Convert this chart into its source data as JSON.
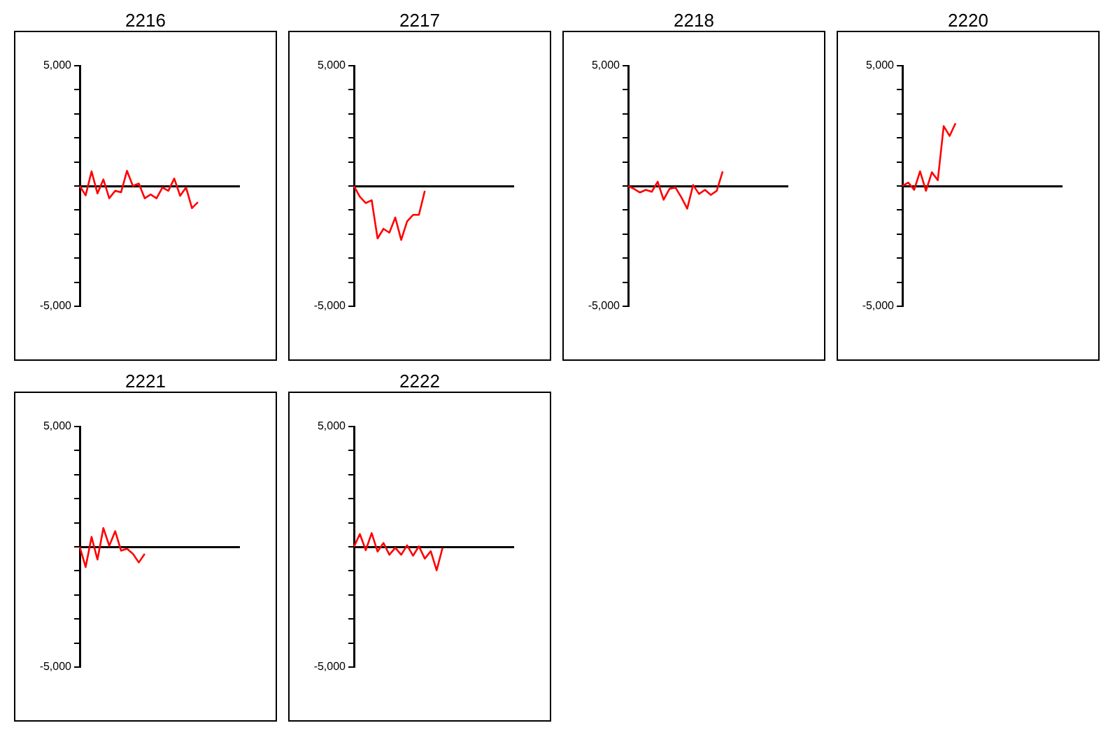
{
  "chart_data": [
    {
      "type": "line",
      "title": "2216",
      "tick_labels": "y",
      "ylim": [
        -5000,
        5000
      ],
      "yticks": [
        {
          "value": -5000,
          "label": "-5,000"
        },
        {
          "value": -4000,
          "label": null
        },
        {
          "value": -3000,
          "label": null
        },
        {
          "value": -2000,
          "label": null
        },
        {
          "value": -1000,
          "label": null
        },
        {
          "value": 0,
          "label": null
        },
        {
          "value": 1000,
          "label": null
        },
        {
          "value": 2000,
          "label": null
        },
        {
          "value": 3000,
          "label": null
        },
        {
          "value": 4000,
          "label": null
        },
        {
          "value": 5000,
          "label": "5,000"
        }
      ],
      "categories": [
        null,
        null,
        null,
        null,
        null,
        null,
        null,
        null,
        null,
        null,
        null,
        null,
        null,
        null,
        null,
        null,
        null,
        null,
        null,
        null,
        null,
        null,
        null,
        null,
        null,
        null,
        null,
        null
      ],
      "series": [
        {
          "color": "#ff0000",
          "values": [
            0,
            -390,
            610,
            -310,
            270,
            -510,
            -200,
            -260,
            630,
            0,
            100,
            -510,
            -350,
            -510,
            -60,
            -200,
            310,
            -410,
            -60,
            -920,
            -670,
            null,
            null,
            null,
            null,
            null,
            null,
            null
          ]
        }
      ]
    },
    {
      "type": "line",
      "title": "2217",
      "tick_labels": "y",
      "ylim": [
        -5000,
        5000
      ],
      "yticks": [
        {
          "value": -5000,
          "label": "-5,000"
        },
        {
          "value": -4000,
          "label": null
        },
        {
          "value": -3000,
          "label": null
        },
        {
          "value": -2000,
          "label": null
        },
        {
          "value": -1000,
          "label": null
        },
        {
          "value": 0,
          "label": null
        },
        {
          "value": 1000,
          "label": null
        },
        {
          "value": 2000,
          "label": null
        },
        {
          "value": 3000,
          "label": null
        },
        {
          "value": 4000,
          "label": null
        },
        {
          "value": 5000,
          "label": "5,000"
        }
      ],
      "categories": [
        null,
        null,
        null,
        null,
        null,
        null,
        null,
        null,
        null,
        null,
        null,
        null,
        null,
        null,
        null,
        null,
        null,
        null,
        null,
        null,
        null,
        null,
        null,
        null,
        null,
        null,
        null,
        null
      ],
      "series": [
        {
          "color": "#ff0000",
          "values": [
            0,
            -450,
            -710,
            -590,
            -2180,
            -1780,
            -1940,
            -1310,
            -2240,
            -1470,
            -1200,
            -1200,
            -200,
            null,
            null,
            null,
            null,
            null,
            null,
            null,
            null,
            null,
            null,
            null,
            null,
            null,
            null,
            null
          ]
        }
      ]
    },
    {
      "type": "line",
      "title": "2218",
      "tick_labels": "y",
      "ylim": [
        -5000,
        5000
      ],
      "yticks": [
        {
          "value": -5000,
          "label": "-5,000"
        },
        {
          "value": -4000,
          "label": null
        },
        {
          "value": -3000,
          "label": null
        },
        {
          "value": -2000,
          "label": null
        },
        {
          "value": -1000,
          "label": null
        },
        {
          "value": 0,
          "label": null
        },
        {
          "value": 1000,
          "label": null
        },
        {
          "value": 2000,
          "label": null
        },
        {
          "value": 3000,
          "label": null
        },
        {
          "value": 4000,
          "label": null
        },
        {
          "value": 5000,
          "label": "5,000"
        }
      ],
      "categories": [
        null,
        null,
        null,
        null,
        null,
        null,
        null,
        null,
        null,
        null,
        null,
        null,
        null,
        null,
        null,
        null,
        null,
        null,
        null,
        null,
        null,
        null,
        null,
        null,
        null,
        null,
        null,
        null
      ],
      "series": [
        {
          "color": "#ff0000",
          "values": [
            0,
            -120,
            -270,
            -160,
            -240,
            180,
            -570,
            -120,
            -60,
            -470,
            -940,
            40,
            -330,
            -160,
            -370,
            -200,
            610,
            null,
            null,
            null,
            null,
            null,
            null,
            null,
            null,
            null,
            null,
            null
          ]
        }
      ]
    },
    {
      "type": "line",
      "title": "2220",
      "tick_labels": "y",
      "ylim": [
        -5000,
        5000
      ],
      "yticks": [
        {
          "value": -5000,
          "label": "-5,000"
        },
        {
          "value": -4000,
          "label": null
        },
        {
          "value": -3000,
          "label": null
        },
        {
          "value": -2000,
          "label": null
        },
        {
          "value": -1000,
          "label": null
        },
        {
          "value": 0,
          "label": null
        },
        {
          "value": 1000,
          "label": null
        },
        {
          "value": 2000,
          "label": null
        },
        {
          "value": 3000,
          "label": null
        },
        {
          "value": 4000,
          "label": null
        },
        {
          "value": 5000,
          "label": "5,000"
        }
      ],
      "categories": [
        null,
        null,
        null,
        null,
        null,
        null,
        null,
        null,
        null,
        null,
        null,
        null,
        null,
        null,
        null,
        null,
        null,
        null,
        null,
        null,
        null,
        null,
        null,
        null,
        null,
        null,
        null,
        null
      ],
      "series": [
        {
          "color": "#ff0000",
          "values": [
            0,
            140,
            -160,
            610,
            -200,
            570,
            240,
            2490,
            2080,
            2610,
            null,
            null,
            null,
            null,
            null,
            null,
            null,
            null,
            null,
            null,
            null,
            null,
            null,
            null,
            null,
            null,
            null,
            null
          ]
        }
      ]
    },
    {
      "type": "line",
      "title": "2221",
      "tick_labels": "y",
      "ylim": [
        -5000,
        5000
      ],
      "yticks": [
        {
          "value": -5000,
          "label": "-5,000"
        },
        {
          "value": -4000,
          "label": null
        },
        {
          "value": -3000,
          "label": null
        },
        {
          "value": -2000,
          "label": null
        },
        {
          "value": -1000,
          "label": null
        },
        {
          "value": 0,
          "label": null
        },
        {
          "value": 1000,
          "label": null
        },
        {
          "value": 2000,
          "label": null
        },
        {
          "value": 3000,
          "label": null
        },
        {
          "value": 4000,
          "label": null
        },
        {
          "value": 5000,
          "label": "5,000"
        }
      ],
      "categories": [
        null,
        null,
        null,
        null,
        null,
        null,
        null,
        null,
        null,
        null,
        null,
        null,
        null,
        null,
        null,
        null,
        null,
        null,
        null,
        null,
        null,
        null,
        null,
        null,
        null,
        null,
        null,
        null
      ],
      "series": [
        {
          "color": "#ff0000",
          "values": [
            0,
            -840,
            410,
            -530,
            780,
            40,
            650,
            -160,
            -80,
            -290,
            -650,
            -290,
            null,
            null,
            null,
            null,
            null,
            null,
            null,
            null,
            null,
            null,
            null,
            null,
            null,
            null,
            null,
            null
          ]
        }
      ]
    },
    {
      "type": "line",
      "title": "2222",
      "tick_labels": "y",
      "ylim": [
        -5000,
        5000
      ],
      "yticks": [
        {
          "value": -5000,
          "label": "-5,000"
        },
        {
          "value": -4000,
          "label": null
        },
        {
          "value": -3000,
          "label": null
        },
        {
          "value": -2000,
          "label": null
        },
        {
          "value": -1000,
          "label": null
        },
        {
          "value": 0,
          "label": null
        },
        {
          "value": 1000,
          "label": null
        },
        {
          "value": 2000,
          "label": null
        },
        {
          "value": 3000,
          "label": null
        },
        {
          "value": 4000,
          "label": null
        },
        {
          "value": 5000,
          "label": "5,000"
        }
      ],
      "categories": [
        null,
        null,
        null,
        null,
        null,
        null,
        null,
        null,
        null,
        null,
        null,
        null,
        null,
        null,
        null,
        null,
        null,
        null,
        null,
        null,
        null,
        null,
        null,
        null,
        null,
        null,
        null,
        null
      ],
      "series": [
        {
          "color": "#ff0000",
          "values": [
            0,
            530,
            -140,
            570,
            -200,
            160,
            -330,
            -40,
            -330,
            60,
            -370,
            20,
            -490,
            -180,
            -980,
            -40,
            null,
            null,
            null,
            null,
            null,
            null,
            null,
            null,
            null,
            null,
            null,
            null
          ]
        }
      ]
    }
  ]
}
